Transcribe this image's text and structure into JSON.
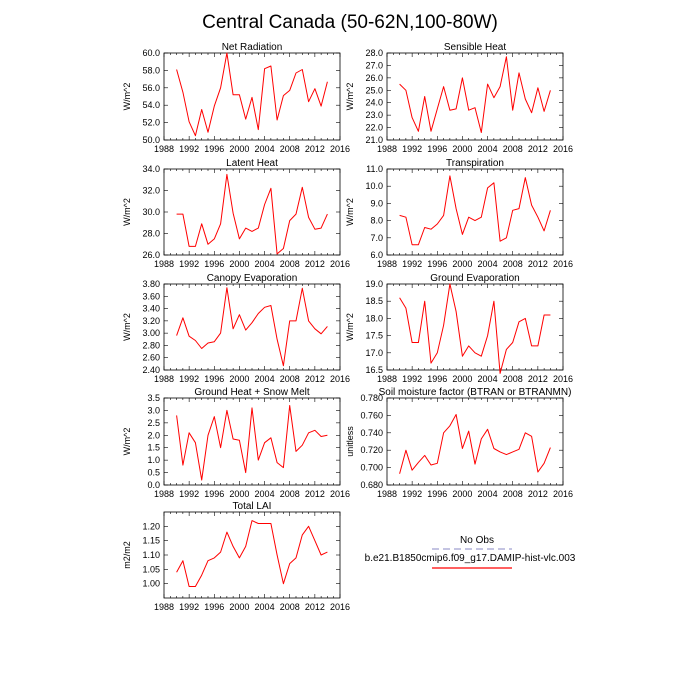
{
  "title": "Central Canada (50-62N,100-80W)",
  "x_ticks": [
    "1988",
    "1992",
    "1996",
    "2000",
    "2004",
    "2008",
    "2012",
    "2016"
  ],
  "legend": {
    "obs_label": "No Obs",
    "model_label": "b.e21.B1850cmip6.f09_g17.DAMIP-hist-vlc.003",
    "obs_color": "#a0a0d0",
    "model_color": "#ff0000"
  },
  "colors": {
    "series": "#ff0000",
    "axis": "#000000"
  },
  "chart_data": [
    {
      "type": "line",
      "title": "Net Radiation",
      "ylabel": "W/m^2",
      "xlim": [
        1988,
        2016
      ],
      "ylim": [
        50,
        60
      ],
      "y_ticks": [
        "50.0",
        "52.0",
        "54.0",
        "56.0",
        "58.0",
        "60.0"
      ],
      "y_tick_values": [
        50,
        52,
        54,
        56,
        58,
        60
      ],
      "x": [
        1990,
        1991,
        1992,
        1993,
        1994,
        1995,
        1996,
        1997,
        1998,
        1999,
        2000,
        2001,
        2002,
        2003,
        2004,
        2005,
        2006,
        2007,
        2008,
        2009,
        2010,
        2011,
        2012,
        2013,
        2014
      ],
      "series": [
        {
          "values": [
            58.1,
            55.5,
            52.1,
            50.5,
            53.5,
            50.9,
            53.9,
            56.0,
            60.0,
            55.2,
            55.2,
            52.4,
            54.9,
            51.2,
            58.2,
            58.5,
            52.3,
            55.1,
            55.7,
            57.7,
            58.1,
            54.4,
            55.9,
            53.9,
            56.7
          ]
        }
      ]
    },
    {
      "type": "line",
      "title": "Sensible Heat",
      "ylabel": "W/m^2",
      "xlim": [
        1988,
        2016
      ],
      "ylim": [
        21,
        28
      ],
      "y_ticks": [
        "21.0",
        "22.0",
        "23.0",
        "24.0",
        "25.0",
        "26.0",
        "27.0",
        "28.0"
      ],
      "y_tick_values": [
        21,
        22,
        23,
        24,
        25,
        26,
        27,
        28
      ],
      "x": [
        1990,
        1991,
        1992,
        1993,
        1994,
        1995,
        1996,
        1997,
        1998,
        1999,
        2000,
        2001,
        2002,
        2003,
        2004,
        2005,
        2006,
        2007,
        2008,
        2009,
        2010,
        2011,
        2012,
        2013,
        2014
      ],
      "series": [
        {
          "values": [
            25.5,
            25.0,
            22.8,
            21.7,
            24.5,
            21.7,
            23.5,
            25.3,
            23.4,
            23.5,
            26.0,
            23.4,
            23.6,
            21.6,
            25.5,
            24.4,
            25.3,
            27.7,
            23.4,
            26.4,
            24.3,
            23.2,
            25.2,
            23.3,
            25.0
          ]
        }
      ]
    },
    {
      "type": "line",
      "title": "Latent Heat",
      "ylabel": "W/m^2",
      "xlim": [
        1988,
        2016
      ],
      "ylim": [
        26,
        34
      ],
      "y_ticks": [
        "26.0",
        "28.0",
        "30.0",
        "32.0",
        "34.0"
      ],
      "y_tick_values": [
        26,
        28,
        30,
        32,
        34
      ],
      "x": [
        1990,
        1991,
        1992,
        1993,
        1994,
        1995,
        1996,
        1997,
        1998,
        1999,
        2000,
        2001,
        2002,
        2003,
        2004,
        2005,
        2006,
        2007,
        2008,
        2009,
        2010,
        2011,
        2012,
        2013,
        2014
      ],
      "series": [
        {
          "values": [
            29.8,
            29.8,
            26.8,
            26.8,
            28.9,
            27.0,
            27.5,
            28.9,
            33.5,
            29.9,
            27.5,
            28.5,
            28.2,
            28.5,
            30.7,
            32.2,
            26.1,
            26.6,
            29.2,
            29.8,
            32.3,
            29.5,
            28.4,
            28.5,
            29.8
          ]
        }
      ]
    },
    {
      "type": "line",
      "title": "Transpiration",
      "ylabel": "W/m^2",
      "xlim": [
        1988,
        2016
      ],
      "ylim": [
        6,
        11
      ],
      "y_ticks": [
        "6.0",
        "7.0",
        "8.0",
        "9.0",
        "10.0",
        "11.0"
      ],
      "y_tick_values": [
        6,
        7,
        8,
        9,
        10,
        11
      ],
      "x": [
        1990,
        1991,
        1992,
        1993,
        1994,
        1995,
        1996,
        1997,
        1998,
        1999,
        2000,
        2001,
        2002,
        2003,
        2004,
        2005,
        2006,
        2007,
        2008,
        2009,
        2010,
        2011,
        2012,
        2013,
        2014
      ],
      "series": [
        {
          "values": [
            8.3,
            8.2,
            6.6,
            6.6,
            7.6,
            7.5,
            7.8,
            8.3,
            10.6,
            8.7,
            7.2,
            8.2,
            8.0,
            8.2,
            9.9,
            10.2,
            6.8,
            7.0,
            8.6,
            8.7,
            10.5,
            8.9,
            8.2,
            7.4,
            8.6
          ]
        }
      ]
    },
    {
      "type": "line",
      "title": "Canopy Evaporation",
      "ylabel": "W/m^2",
      "xlim": [
        1988,
        2016
      ],
      "ylim": [
        2.4,
        3.8
      ],
      "y_ticks": [
        "2.40",
        "2.60",
        "2.80",
        "3.00",
        "3.20",
        "3.40",
        "3.60",
        "3.80"
      ],
      "y_tick_values": [
        2.4,
        2.6,
        2.8,
        3.0,
        3.2,
        3.4,
        3.6,
        3.8
      ],
      "x": [
        1990,
        1991,
        1992,
        1993,
        1994,
        1995,
        1996,
        1997,
        1998,
        1999,
        2000,
        2001,
        2002,
        2003,
        2004,
        2005,
        2006,
        2007,
        2008,
        2009,
        2010,
        2011,
        2012,
        2013,
        2014
      ],
      "series": [
        {
          "values": [
            2.96,
            3.25,
            2.95,
            2.88,
            2.75,
            2.84,
            2.86,
            3.0,
            3.74,
            3.07,
            3.3,
            3.05,
            3.17,
            3.32,
            3.42,
            3.45,
            2.9,
            2.47,
            3.2,
            3.2,
            3.73,
            3.2,
            3.07,
            2.99,
            3.11
          ]
        }
      ]
    },
    {
      "type": "line",
      "title": "Ground Evaporation",
      "ylabel": "W/m^2",
      "xlim": [
        1988,
        2016
      ],
      "ylim": [
        16.5,
        19.0
      ],
      "y_ticks": [
        "16.5",
        "17.0",
        "17.5",
        "18.0",
        "18.5",
        "19.0"
      ],
      "y_tick_values": [
        16.5,
        17.0,
        17.5,
        18.0,
        18.5,
        19.0
      ],
      "x": [
        1990,
        1991,
        1992,
        1993,
        1994,
        1995,
        1996,
        1997,
        1998,
        1999,
        2000,
        2001,
        2002,
        2003,
        2004,
        2005,
        2006,
        2007,
        2008,
        2009,
        2010,
        2011,
        2012,
        2013,
        2014
      ],
      "series": [
        {
          "values": [
            18.6,
            18.3,
            17.3,
            17.3,
            18.5,
            16.7,
            17.0,
            17.8,
            19.0,
            18.2,
            16.9,
            17.2,
            17.0,
            16.9,
            17.5,
            18.5,
            16.4,
            17.1,
            17.3,
            17.9,
            18.0,
            17.2,
            17.2,
            18.1,
            18.1
          ]
        }
      ]
    },
    {
      "type": "line",
      "title": "Ground Heat + Snow Melt",
      "ylabel": "W/m^2",
      "xlim": [
        1988,
        2016
      ],
      "ylim": [
        0,
        3.5
      ],
      "y_ticks": [
        "0.0",
        "0.5",
        "1.0",
        "1.5",
        "2.0",
        "2.5",
        "3.0",
        "3.5"
      ],
      "y_tick_values": [
        0,
        0.5,
        1.0,
        1.5,
        2.0,
        2.5,
        3.0,
        3.5
      ],
      "x": [
        1990,
        1991,
        1992,
        1993,
        1994,
        1995,
        1996,
        1997,
        1998,
        1999,
        2000,
        2001,
        2002,
        2003,
        2004,
        2005,
        2006,
        2007,
        2008,
        2009,
        2010,
        2011,
        2012,
        2013,
        2014
      ],
      "series": [
        {
          "values": [
            2.8,
            0.8,
            2.1,
            1.7,
            0.2,
            2.0,
            2.75,
            1.5,
            3.0,
            1.85,
            1.8,
            0.5,
            3.1,
            1.0,
            1.7,
            1.9,
            0.9,
            0.7,
            3.2,
            1.35,
            1.6,
            2.1,
            2.2,
            1.95,
            2.0
          ]
        }
      ]
    },
    {
      "type": "line",
      "title": "Soil moisture factor (BTRAN or BTRANMN)",
      "ylabel": "unitless",
      "xlim": [
        1988,
        2016
      ],
      "ylim": [
        0.68,
        0.78
      ],
      "y_ticks": [
        "0.680",
        "0.700",
        "0.720",
        "0.740",
        "0.760",
        "0.780"
      ],
      "y_tick_values": [
        0.68,
        0.7,
        0.72,
        0.74,
        0.76,
        0.78
      ],
      "x": [
        1990,
        1991,
        1992,
        1993,
        1994,
        1995,
        1996,
        1997,
        1998,
        1999,
        2000,
        2001,
        2002,
        2003,
        2004,
        2005,
        2006,
        2007,
        2008,
        2009,
        2010,
        2011,
        2012,
        2013,
        2014
      ],
      "series": [
        {
          "values": [
            0.693,
            0.72,
            0.697,
            0.706,
            0.714,
            0.703,
            0.705,
            0.74,
            0.748,
            0.761,
            0.722,
            0.742,
            0.704,
            0.733,
            0.744,
            0.722,
            0.718,
            0.715,
            0.718,
            0.721,
            0.74,
            0.736,
            0.695,
            0.705,
            0.723
          ]
        }
      ]
    },
    {
      "type": "line",
      "title": "Total LAI",
      "ylabel": "m2/m2",
      "xlim": [
        1988,
        2016
      ],
      "ylim": [
        0.95,
        1.25
      ],
      "y_ticks": [
        "1.00",
        "1.05",
        "1.10",
        "1.15",
        "1.20"
      ],
      "y_tick_values": [
        1.0,
        1.05,
        1.1,
        1.15,
        1.2
      ],
      "x": [
        1990,
        1991,
        1992,
        1993,
        1994,
        1995,
        1996,
        1997,
        1998,
        1999,
        2000,
        2001,
        2002,
        2003,
        2004,
        2005,
        2006,
        2007,
        2008,
        2009,
        2010,
        2011,
        2012,
        2013,
        2014
      ],
      "series": [
        {
          "values": [
            1.04,
            1.08,
            0.99,
            0.99,
            1.03,
            1.08,
            1.09,
            1.11,
            1.18,
            1.13,
            1.09,
            1.13,
            1.22,
            1.21,
            1.21,
            1.21,
            1.1,
            1.0,
            1.07,
            1.09,
            1.17,
            1.2,
            1.15,
            1.1,
            1.11
          ]
        }
      ]
    }
  ]
}
